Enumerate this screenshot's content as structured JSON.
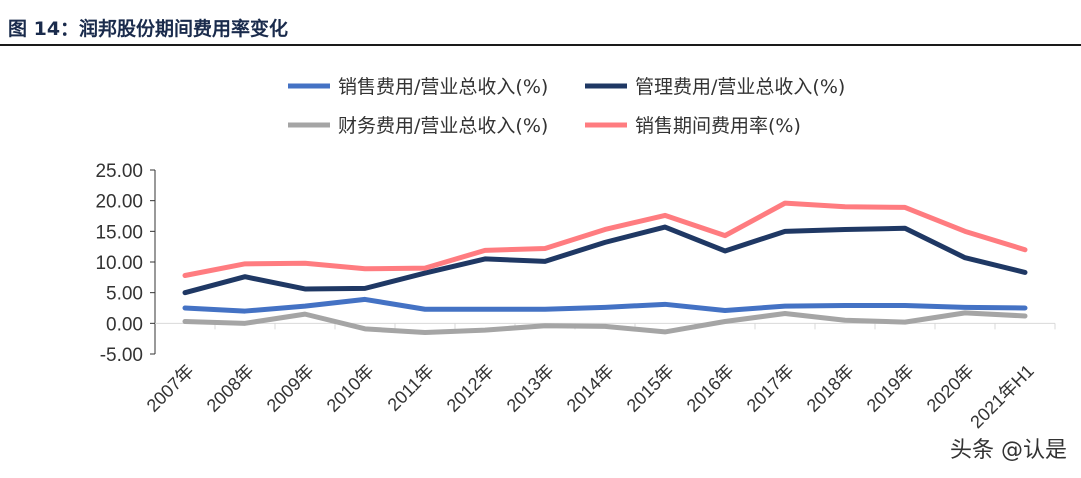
{
  "title": "图 14：润邦股份期间费用率变化",
  "watermark": "头条 @认是",
  "chart_data": {
    "type": "line",
    "categories": [
      "2007年",
      "2008年",
      "2009年",
      "2010年",
      "2011年",
      "2012年",
      "2013年",
      "2014年",
      "2015年",
      "2016年",
      "2017年",
      "2018年",
      "2019年",
      "2020年",
      "2021年H1"
    ],
    "ylim": [
      -5,
      25
    ],
    "yticks": [
      "-5.00",
      "0.00",
      "5.00",
      "10.00",
      "15.00",
      "20.00",
      "25.00"
    ],
    "legend_position": "top",
    "series": [
      {
        "name": "销售费用/营业总收入(%)",
        "color": "#4472c4",
        "values": [
          2.5,
          2.0,
          2.8,
          3.9,
          2.3,
          2.3,
          2.3,
          2.6,
          3.1,
          2.1,
          2.8,
          2.9,
          2.9,
          2.6,
          2.5
        ]
      },
      {
        "name": "管理费用/营业总收入(%)",
        "color": "#1f3864",
        "values": [
          5.0,
          7.6,
          5.6,
          5.7,
          8.2,
          10.5,
          10.1,
          13.2,
          15.7,
          11.8,
          15.0,
          15.3,
          15.5,
          10.7,
          8.3
        ]
      },
      {
        "name": "财务费用/营业总收入(%)",
        "color": "#a5a5a5",
        "values": [
          0.3,
          0.0,
          1.5,
          -0.9,
          -1.5,
          -1.1,
          -0.4,
          -0.5,
          -1.4,
          0.3,
          1.6,
          0.5,
          0.2,
          1.7,
          1.2
        ]
      },
      {
        "name": "销售期间费用率(%)",
        "color": "#ff7c80",
        "values": [
          7.8,
          9.7,
          9.8,
          8.9,
          9.0,
          11.9,
          12.2,
          15.3,
          17.6,
          14.3,
          19.6,
          19.0,
          18.9,
          15.0,
          12.0
        ]
      }
    ]
  }
}
